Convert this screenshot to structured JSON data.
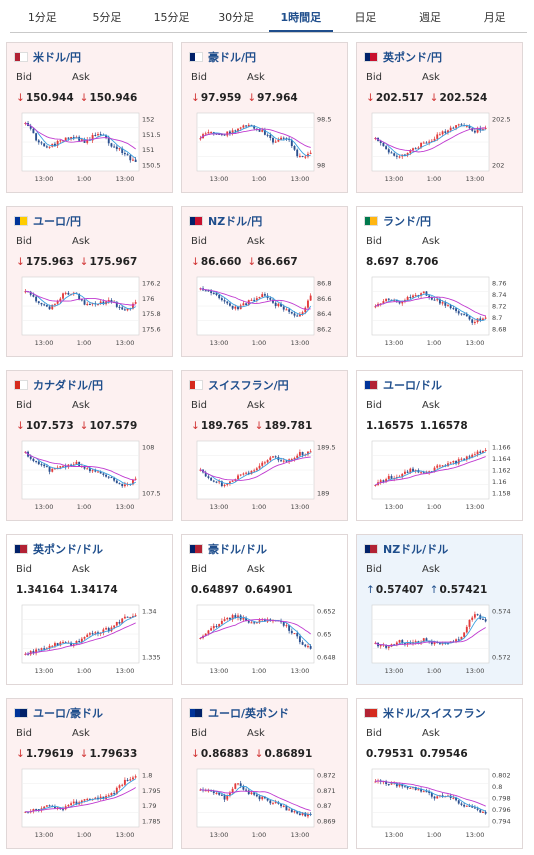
{
  "tabs": [
    "1分足",
    "5分足",
    "15分足",
    "30分足",
    "1時間足",
    "日足",
    "週足",
    "月足"
  ],
  "active_tab": 4,
  "labels": {
    "bid": "Bid",
    "ask": "Ask"
  },
  "colors": {
    "candle_up": "#e23b3b",
    "candle_down": "#2a4f8f",
    "ma_short": "#3aa0e0",
    "ma_long": "#c03ad0",
    "down_bg": "#fdf1f1",
    "up_bg": "#edf4fb"
  },
  "time_ticks": [
    "13:00",
    "1:00",
    "13:00"
  ],
  "pairs": [
    {
      "name": "米ドル/円",
      "flag": [
        "#b22234",
        "#ffffff"
      ],
      "dir": "down",
      "bid": "150.944",
      "ask": "150.946",
      "ticks": [
        "152",
        "151.5",
        "151",
        "150.5"
      ],
      "trend": [
        0.9,
        0.5,
        0.4,
        0.55,
        0.6,
        0.5,
        0.7,
        0.45,
        0.3,
        0.1
      ]
    },
    {
      "name": "豪ドル/円",
      "flag": [
        "#012169",
        "#ffffff"
      ],
      "dir": "down",
      "bid": "97.959",
      "ask": "97.964",
      "ticks": [
        "98.5",
        "98"
      ],
      "trend": [
        0.6,
        0.7,
        0.65,
        0.75,
        0.85,
        0.7,
        0.5,
        0.6,
        0.2,
        0.3
      ]
    },
    {
      "name": "英ポンド/円",
      "flag": [
        "#012169",
        "#c8102e"
      ],
      "dir": "down",
      "bid": "202.517",
      "ask": "202.524",
      "ticks": [
        "202.5",
        "202"
      ],
      "trend": [
        0.6,
        0.3,
        0.2,
        0.35,
        0.5,
        0.6,
        0.75,
        0.85,
        0.7,
        0.8
      ]
    },
    {
      "name": "ユーロ/円",
      "flag": [
        "#003399",
        "#ffcc00"
      ],
      "dir": "down",
      "bid": "175.963",
      "ask": "175.967",
      "ticks": [
        "176.2",
        "176",
        "175.8",
        "175.6"
      ],
      "trend": [
        0.8,
        0.6,
        0.45,
        0.7,
        0.75,
        0.5,
        0.55,
        0.6,
        0.4,
        0.55
      ]
    },
    {
      "name": "NZドル/円",
      "flag": [
        "#012169",
        "#c8102e"
      ],
      "dir": "down",
      "bid": "86.660",
      "ask": "86.667",
      "ticks": [
        "86.8",
        "86.6",
        "86.4",
        "86.2"
      ],
      "trend": [
        0.85,
        0.75,
        0.55,
        0.45,
        0.6,
        0.7,
        0.55,
        0.45,
        0.25,
        0.7
      ]
    },
    {
      "name": "ランド/円",
      "flag": [
        "#007a4d",
        "#ffb612"
      ],
      "dir": "none",
      "bid": "8.697",
      "ask": "8.706",
      "ticks": [
        "8.76",
        "8.74",
        "8.72",
        "8.7",
        "8.68"
      ],
      "trend": [
        0.5,
        0.65,
        0.55,
        0.7,
        0.75,
        0.6,
        0.5,
        0.35,
        0.2,
        0.3
      ]
    },
    {
      "name": "カナダドル/円",
      "flag": [
        "#d52b1e",
        "#ffffff"
      ],
      "dir": "down",
      "bid": "107.573",
      "ask": "107.579",
      "ticks": [
        "108",
        "107.5"
      ],
      "trend": [
        0.85,
        0.6,
        0.5,
        0.55,
        0.65,
        0.5,
        0.45,
        0.35,
        0.2,
        0.3
      ]
    },
    {
      "name": "スイスフラン/円",
      "flag": [
        "#d52b1e",
        "#ffffff"
      ],
      "dir": "down",
      "bid": "189.765",
      "ask": "189.781",
      "ticks": [
        "189.5",
        "189"
      ],
      "trend": [
        0.5,
        0.3,
        0.2,
        0.35,
        0.45,
        0.6,
        0.75,
        0.65,
        0.8,
        0.85
      ]
    },
    {
      "name": "ユーロ/ドル",
      "flag": [
        "#003399",
        "#b22234"
      ],
      "dir": "none",
      "bid": "1.16575",
      "ask": "1.16578",
      "ticks": [
        "1.166",
        "1.164",
        "1.162",
        "1.16",
        "1.158"
      ],
      "trend": [
        0.2,
        0.35,
        0.4,
        0.5,
        0.45,
        0.55,
        0.6,
        0.7,
        0.8,
        0.9
      ]
    },
    {
      "name": "英ポンド/ドル",
      "flag": [
        "#012169",
        "#b22234"
      ],
      "dir": "none",
      "bid": "1.34164",
      "ask": "1.34174",
      "ticks": [
        "1.34",
        "1.335"
      ],
      "trend": [
        0.1,
        0.2,
        0.25,
        0.35,
        0.3,
        0.45,
        0.55,
        0.6,
        0.8,
        0.9
      ]
    },
    {
      "name": "豪ドル/ドル",
      "flag": [
        "#012169",
        "#b22234"
      ],
      "dir": "none",
      "bid": "0.64897",
      "ask": "0.64901",
      "ticks": [
        "0.652",
        "0.65",
        "0.648"
      ],
      "trend": [
        0.4,
        0.6,
        0.8,
        0.85,
        0.7,
        0.75,
        0.8,
        0.65,
        0.4,
        0.2
      ]
    },
    {
      "name": "NZドル/ドル",
      "flag": [
        "#012169",
        "#b22234"
      ],
      "dir": "up",
      "bid": "0.57407",
      "ask": "0.57421",
      "ticks": [
        "0.574",
        "0.572"
      ],
      "trend": [
        0.3,
        0.25,
        0.35,
        0.3,
        0.4,
        0.3,
        0.35,
        0.4,
        0.9,
        0.75
      ]
    },
    {
      "name": "ユーロ/豪ドル",
      "flag": [
        "#003399",
        "#012169"
      ],
      "dir": "down",
      "bid": "1.79619",
      "ask": "1.79633",
      "ticks": [
        "1.8",
        "1.795",
        "1.79",
        "1.785"
      ],
      "trend": [
        0.2,
        0.3,
        0.35,
        0.3,
        0.4,
        0.45,
        0.5,
        0.55,
        0.8,
        0.95
      ]
    },
    {
      "name": "ユーロ/英ポンド",
      "flag": [
        "#003399",
        "#012169"
      ],
      "dir": "down",
      "bid": "0.86883",
      "ask": "0.86891",
      "ticks": [
        "0.872",
        "0.871",
        "0.87",
        "0.869"
      ],
      "trend": [
        0.7,
        0.6,
        0.5,
        0.8,
        0.6,
        0.5,
        0.4,
        0.3,
        0.2,
        0.15
      ]
    },
    {
      "name": "米ドル/スイスフラン",
      "flag": [
        "#b22234",
        "#d52b1e"
      ],
      "dir": "none",
      "bid": "0.79531",
      "ask": "0.79546",
      "ticks": [
        "0.802",
        "0.8",
        "0.798",
        "0.796",
        "0.794"
      ],
      "trend": [
        0.85,
        0.8,
        0.75,
        0.7,
        0.65,
        0.5,
        0.55,
        0.4,
        0.3,
        0.2
      ]
    }
  ]
}
